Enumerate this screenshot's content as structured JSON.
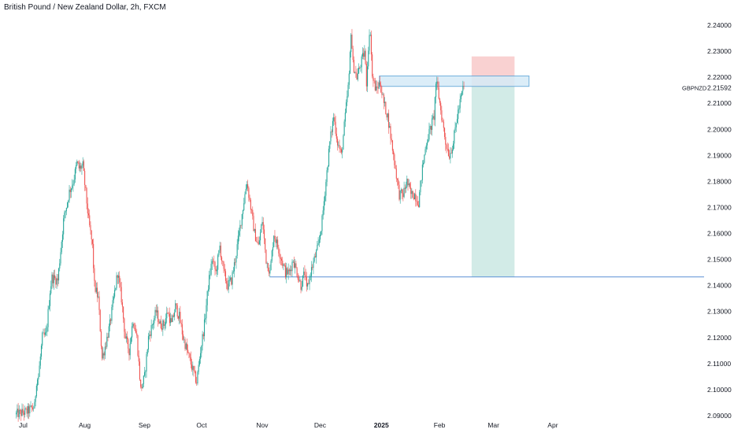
{
  "header": {
    "title": "British Pound / New Zealand Dollar, 2h, FXCM"
  },
  "chart_data": {
    "type": "candlestick",
    "title": "British Pound / New Zealand Dollar, 2h, FXCM",
    "symbol": "GBPNZD",
    "last_price": 2.21592,
    "last_price_label": "2.21592",
    "ylim": [
      2.0895,
      2.2442
    ],
    "y_ticks": [
      "2.24000",
      "2.23000",
      "2.22000",
      "2.21000",
      "2.20000",
      "2.19000",
      "2.18000",
      "2.17000",
      "2.16000",
      "2.15000",
      "2.14000",
      "2.13000",
      "2.12000",
      "2.11000",
      "2.10000",
      "2.09000"
    ],
    "x_ticks": [
      {
        "label": "Jul",
        "day": 0,
        "bold": false
      },
      {
        "label": "Aug",
        "day": 31,
        "bold": false
      },
      {
        "label": "Sep",
        "day": 62,
        "bold": false
      },
      {
        "label": "Oct",
        "day": 92,
        "bold": false
      },
      {
        "label": "Nov",
        "day": 123,
        "bold": false
      },
      {
        "label": "Dec",
        "day": 153,
        "bold": false
      },
      {
        "label": "2025",
        "day": 184,
        "bold": true
      },
      {
        "label": "Feb",
        "day": 215,
        "bold": false
      },
      {
        "label": "Mar",
        "day": 243,
        "bold": false
      },
      {
        "label": "Apr",
        "day": 274,
        "bold": false
      }
    ],
    "price_path": [
      [
        -3,
        2.0905
      ],
      [
        3,
        2.0915
      ],
      [
        7,
        2.0935
      ],
      [
        8,
        2.1035
      ],
      [
        9,
        2.105
      ],
      [
        11,
        2.12
      ],
      [
        13,
        2.121
      ],
      [
        15,
        2.138
      ],
      [
        16,
        2.143
      ],
      [
        19,
        2.142
      ],
      [
        22,
        2.165
      ],
      [
        25,
        2.176
      ],
      [
        27,
        2.18
      ],
      [
        29,
        2.187
      ],
      [
        30,
        2.185
      ],
      [
        32,
        2.186
      ],
      [
        35,
        2.165
      ],
      [
        37,
        2.155
      ],
      [
        38,
        2.14
      ],
      [
        40,
        2.135
      ],
      [
        42,
        2.112
      ],
      [
        44,
        2.118
      ],
      [
        46,
        2.125
      ],
      [
        48,
        2.135
      ],
      [
        50,
        2.145
      ],
      [
        52,
        2.135
      ],
      [
        54,
        2.12
      ],
      [
        56,
        2.115
      ],
      [
        58,
        2.127
      ],
      [
        60,
        2.12
      ],
      [
        61,
        2.11
      ],
      [
        62,
        2.1
      ],
      [
        64,
        2.105
      ],
      [
        66,
        2.12
      ],
      [
        68,
        2.125
      ],
      [
        70,
        2.13
      ],
      [
        72,
        2.125
      ],
      [
        74,
        2.125
      ],
      [
        76,
        2.13
      ],
      [
        78,
        2.125
      ],
      [
        80,
        2.132
      ],
      [
        82,
        2.128
      ],
      [
        84,
        2.12
      ],
      [
        86,
        2.115
      ],
      [
        88,
        2.11
      ],
      [
        90,
        2.105
      ],
      [
        91,
        2.103
      ],
      [
        93,
        2.115
      ],
      [
        95,
        2.125
      ],
      [
        97,
        2.14
      ],
      [
        99,
        2.15
      ],
      [
        101,
        2.145
      ],
      [
        103,
        2.155
      ],
      [
        105,
        2.145
      ],
      [
        107,
        2.14
      ],
      [
        109,
        2.142
      ],
      [
        111,
        2.15
      ],
      [
        113,
        2.16
      ],
      [
        115,
        2.17
      ],
      [
        117,
        2.18
      ],
      [
        119,
        2.17
      ],
      [
        121,
        2.16
      ],
      [
        123,
        2.155
      ],
      [
        125,
        2.165
      ],
      [
        127,
        2.15
      ],
      [
        129,
        2.145
      ],
      [
        131,
        2.16
      ],
      [
        133,
        2.155
      ],
      [
        135,
        2.15
      ],
      [
        137,
        2.145
      ],
      [
        139,
        2.145
      ],
      [
        141,
        2.15
      ],
      [
        143,
        2.145
      ],
      [
        145,
        2.14
      ],
      [
        147,
        2.145
      ],
      [
        148,
        2.138
      ],
      [
        150,
        2.145
      ],
      [
        152,
        2.15
      ],
      [
        154,
        2.155
      ],
      [
        156,
        2.165
      ],
      [
        158,
        2.18
      ],
      [
        160,
        2.195
      ],
      [
        162,
        2.205
      ],
      [
        164,
        2.195
      ],
      [
        166,
        2.19
      ],
      [
        168,
        2.205
      ],
      [
        170,
        2.22
      ],
      [
        171,
        2.238
      ],
      [
        172,
        2.225
      ],
      [
        174,
        2.22
      ],
      [
        176,
        2.225
      ],
      [
        178,
        2.23
      ],
      [
        179,
        2.218
      ],
      [
        180,
        2.232
      ],
      [
        181,
        2.238
      ],
      [
        182,
        2.22
      ],
      [
        184,
        2.215
      ],
      [
        186,
        2.218
      ],
      [
        188,
        2.21
      ],
      [
        190,
        2.205
      ],
      [
        192,
        2.195
      ],
      [
        194,
        2.185
      ],
      [
        196,
        2.175
      ],
      [
        198,
        2.175
      ],
      [
        200,
        2.18
      ],
      [
        202,
        2.175
      ],
      [
        204,
        2.175
      ],
      [
        206,
        2.172
      ],
      [
        208,
        2.185
      ],
      [
        210,
        2.195
      ],
      [
        212,
        2.2
      ],
      [
        214,
        2.205
      ],
      [
        215,
        2.218
      ],
      [
        216,
        2.215
      ],
      [
        218,
        2.205
      ],
      [
        220,
        2.195
      ],
      [
        222,
        2.19
      ],
      [
        224,
        2.195
      ],
      [
        226,
        2.205
      ],
      [
        228,
        2.212
      ],
      [
        229,
        2.2159
      ]
    ],
    "annotations": {
      "resistance_zone": {
        "x_start_day": 175,
        "x_end_day": 235,
        "y_low": 2.2165,
        "y_high": 2.2205
      },
      "support_line": {
        "x_start_day": 112,
        "price": 2.1433
      },
      "position": {
        "x_start_day": 233,
        "x_end_day": 243,
        "entry": 2.2165,
        "stop": 2.228,
        "target": 2.1433,
        "stop_color": "#f7c6c5",
        "target_color": "#cde9e4"
      }
    },
    "colors": {
      "up": "#26a69a",
      "down": "#ef5350",
      "zone_fill": "#d5ebf7",
      "zone_stroke": "#5aa3d8",
      "line": "#5b8fd6"
    }
  }
}
